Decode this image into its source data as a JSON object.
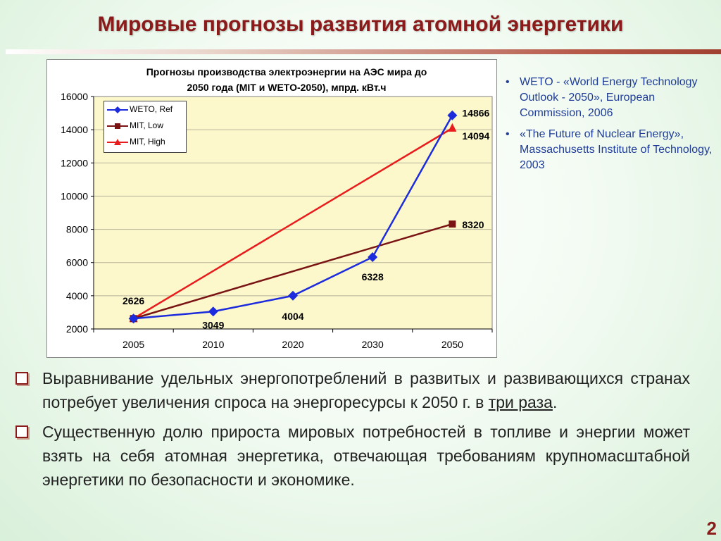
{
  "slide": {
    "title": "Мировые прогнозы развития атомной энергетики",
    "page_number": "2"
  },
  "references": [
    "WETO - «World Energy Technology Outlook - 2050», European Commission, 2006",
    "«The Future of Nuclear Energy», Massachusetts Institute of Technology, 2003"
  ],
  "bullets": [
    {
      "pre": "Выравнивание удельных энергопотреблений в развитых и развивающихся странах потребует увеличения спроса на энергоресурсы  к 2050 г. в ",
      "underlined": "три раза",
      "post": "."
    },
    {
      "pre": "Существенную долю прироста мировых потребностей в топливе и энергии может взять на себя атомная энергетика, отвечающая требованиям крупномасштабной энергетики по безопасности и экономике.",
      "underlined": "",
      "post": ""
    }
  ],
  "chart_data": {
    "type": "line",
    "title_line1": "Прогнозы производства электроэнергии на АЭС мира до",
    "title_line2": "2050 года (MIT и WETO-2050), мпрд. кВт.ч",
    "categories": [
      "2005",
      "2010",
      "2020",
      "2030",
      "2050"
    ],
    "ylim": [
      2000,
      16000
    ],
    "yticks": [
      2000,
      4000,
      6000,
      8000,
      10000,
      12000,
      14000,
      16000
    ],
    "plot_background": "#fcf8cc",
    "legend_position": "top-left",
    "series": [
      {
        "name": "WETO, Ref",
        "color": "#1c2bdc",
        "marker": "diamond",
        "values": [
          2626,
          3049,
          4004,
          6328,
          14866
        ],
        "labels": [
          "2626",
          "3049",
          "4004",
          "6328",
          "14866"
        ]
      },
      {
        "name": "MIT, Low",
        "color": "#7a1414",
        "marker": "square",
        "values": [
          2626,
          null,
          null,
          null,
          8320
        ],
        "labels": [
          "",
          "",
          "",
          "",
          "8320"
        ]
      },
      {
        "name": "MIT, High",
        "color": "#e81c1c",
        "marker": "triangle",
        "values": [
          2626,
          null,
          null,
          null,
          14094
        ],
        "labels": [
          "",
          "",
          "",
          "",
          "14094"
        ]
      }
    ]
  }
}
